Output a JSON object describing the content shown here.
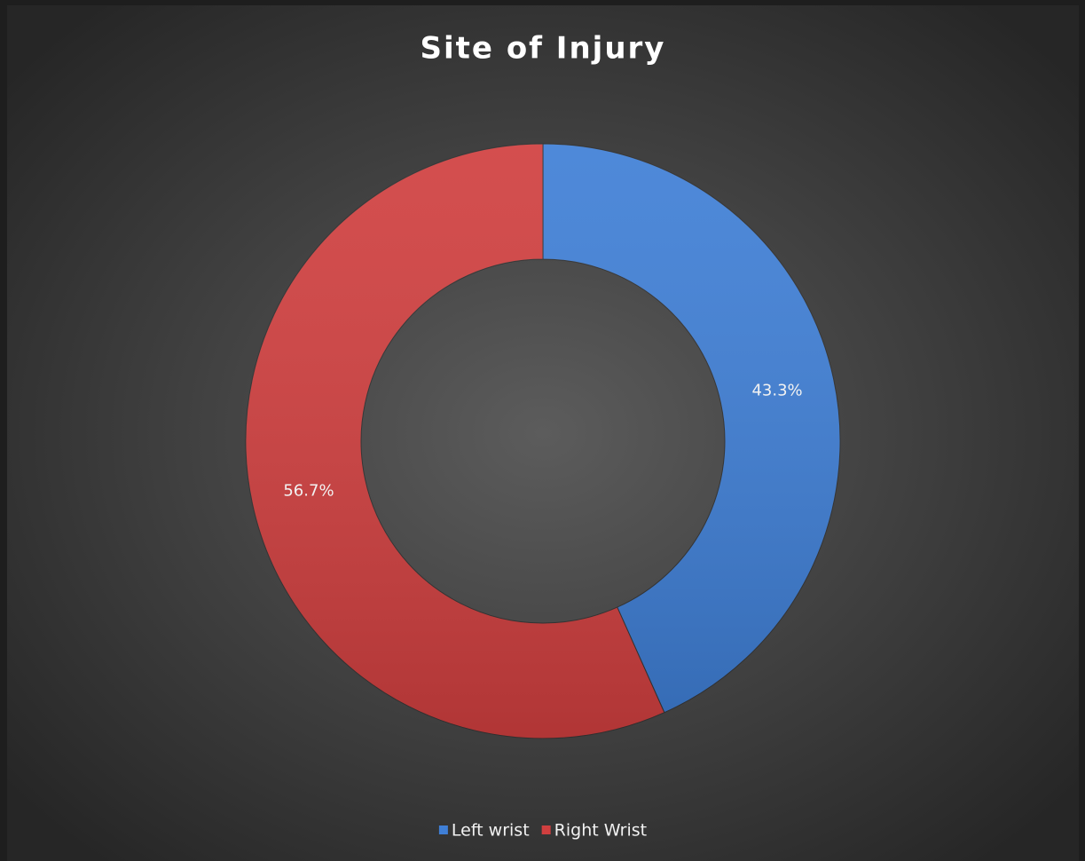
{
  "chart_data": {
    "type": "donut",
    "title": "Site of Injury",
    "categories": [
      "Left wrist",
      "Right Wrist"
    ],
    "values": [
      43.3,
      56.7
    ],
    "value_labels": [
      "43.3%",
      "56.7%"
    ],
    "colors": [
      "#3f7fd6",
      "#d03f3f"
    ],
    "legend": "bottom"
  }
}
